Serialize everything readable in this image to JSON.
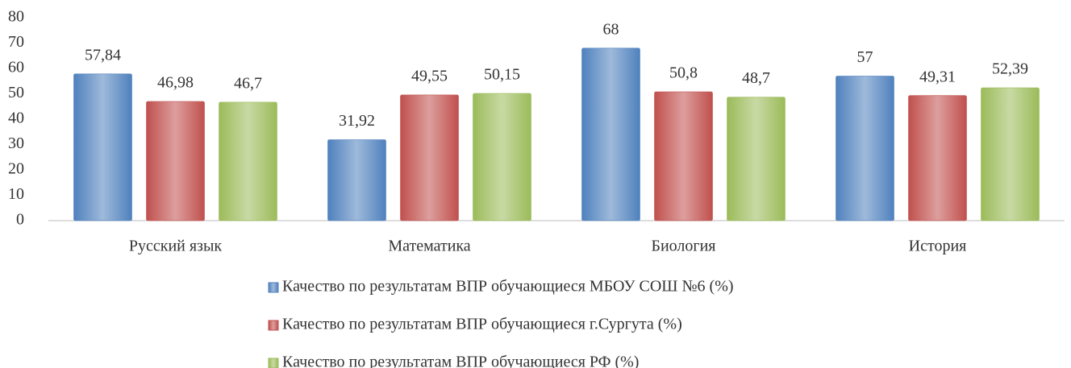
{
  "chart_data": {
    "type": "bar",
    "categories": [
      "Русский язык",
      "Математика",
      "Биология",
      "История"
    ],
    "series": [
      {
        "name": "Качество по результатам ВПР обучающиеся МБОУ СОШ №6 (%)",
        "color": "#4f81bd",
        "values": [
          57.84,
          31.92,
          68,
          57
        ],
        "value_labels": [
          "57,84",
          "31,92",
          "68",
          "57"
        ]
      },
      {
        "name": "Качество по результатам ВПР обучающиеся г.Сургута (%)",
        "color": "#c0504d",
        "values": [
          46.98,
          49.55,
          50.8,
          49.31
        ],
        "value_labels": [
          "46,98",
          "49,55",
          "50,8",
          "49,31"
        ]
      },
      {
        "name": "Качество по результатам ВПР обучающиеся РФ (%)",
        "color": "#9bbb59",
        "values": [
          46.7,
          50.15,
          48.7,
          52.39
        ],
        "value_labels": [
          "46,7",
          "50,15",
          "48,7",
          "52,39"
        ]
      }
    ],
    "ylim": [
      0,
      80
    ],
    "yticks": [
      0,
      10,
      20,
      30,
      40,
      50,
      60,
      70,
      80
    ],
    "grid": false,
    "legend": "bottom"
  }
}
